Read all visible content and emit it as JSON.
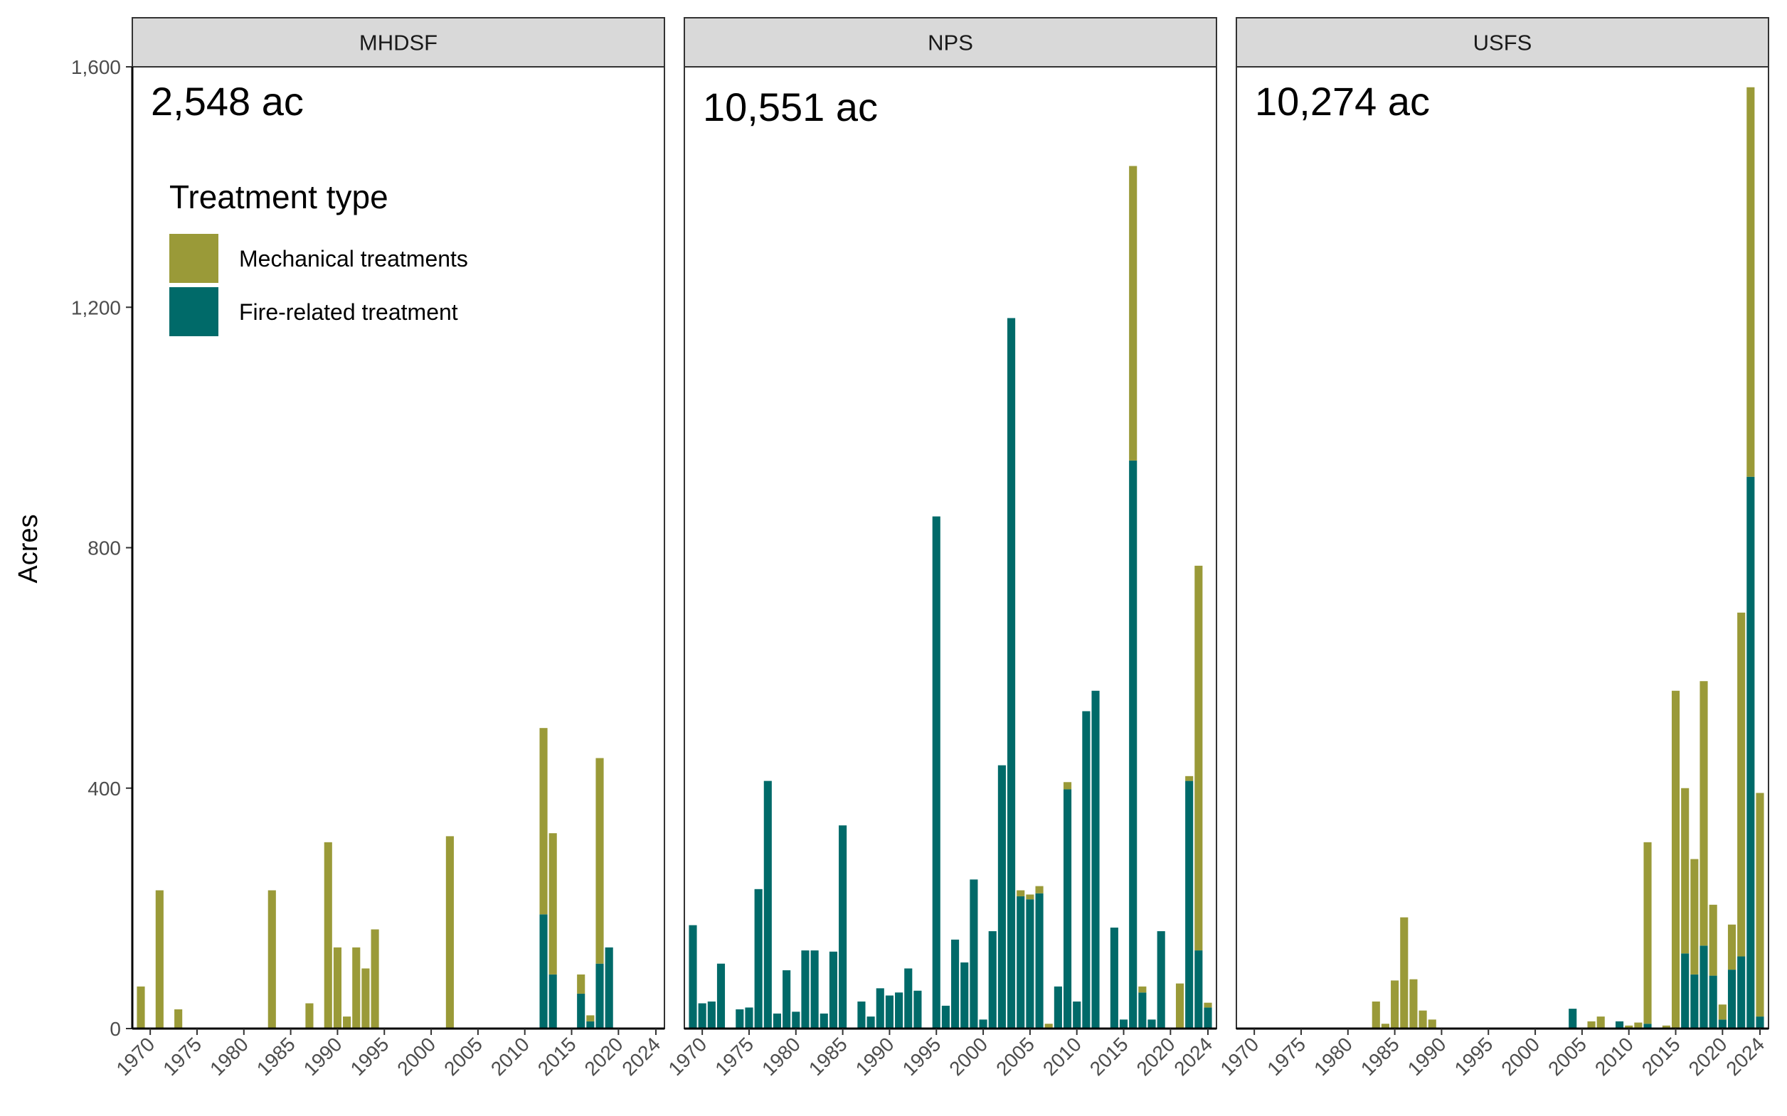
{
  "chart_data": {
    "type": "bar",
    "stacked": true,
    "ylabel": "Acres",
    "ylim": [
      0,
      1600
    ],
    "yticks": [
      0,
      400,
      800,
      1200,
      1600
    ],
    "ytick_labels": [
      "0",
      "400",
      "800",
      "1,200",
      "1,600"
    ],
    "xlim": [
      1969,
      2024
    ],
    "xticks": [
      1970,
      1975,
      1980,
      1985,
      1990,
      1995,
      2000,
      2005,
      2010,
      2015,
      2020,
      2024
    ],
    "xtick_labels": [
      "1970",
      "1975",
      "1980",
      "1985",
      "1990",
      "1995",
      "2000",
      "2005",
      "2010",
      "2015",
      "2020",
      "2024"
    ],
    "colors": {
      "Fire-related treatment": "#006a69",
      "Mechanical treatments": "#9a9a38"
    },
    "legend": {
      "title": "Treatment type",
      "position": "top-left of first panel",
      "entries": [
        "Mechanical treatments",
        "Fire-related treatment"
      ]
    },
    "panels": [
      {
        "name": "MHDSF",
        "total_label": "2,548 ac",
        "bars": [
          {
            "year": 1969,
            "fire": 0,
            "mech": 70
          },
          {
            "year": 1971,
            "fire": 0,
            "mech": 230
          },
          {
            "year": 1973,
            "fire": 0,
            "mech": 32
          },
          {
            "year": 1983,
            "fire": 0,
            "mech": 230
          },
          {
            "year": 1987,
            "fire": 0,
            "mech": 42
          },
          {
            "year": 1989,
            "fire": 0,
            "mech": 310
          },
          {
            "year": 1990,
            "fire": 0,
            "mech": 135
          },
          {
            "year": 1991,
            "fire": 0,
            "mech": 20
          },
          {
            "year": 1992,
            "fire": 0,
            "mech": 135
          },
          {
            "year": 1993,
            "fire": 0,
            "mech": 100
          },
          {
            "year": 1994,
            "fire": 0,
            "mech": 165
          },
          {
            "year": 2002,
            "fire": 0,
            "mech": 320
          },
          {
            "year": 2012,
            "fire": 190,
            "mech": 310
          },
          {
            "year": 2013,
            "fire": 90,
            "mech": 235
          },
          {
            "year": 2016,
            "fire": 58,
            "mech": 32
          },
          {
            "year": 2017,
            "fire": 12,
            "mech": 10
          },
          {
            "year": 2018,
            "fire": 108,
            "mech": 342
          },
          {
            "year": 2019,
            "fire": 135,
            "mech": 0
          }
        ]
      },
      {
        "name": "NPS",
        "total_label": "10,551 ac",
        "bars": [
          {
            "year": 1969,
            "fire": 172,
            "mech": 0
          },
          {
            "year": 1970,
            "fire": 42,
            "mech": 0
          },
          {
            "year": 1971,
            "fire": 45,
            "mech": 0
          },
          {
            "year": 1972,
            "fire": 108,
            "mech": 0
          },
          {
            "year": 1974,
            "fire": 32,
            "mech": 0
          },
          {
            "year": 1975,
            "fire": 35,
            "mech": 0
          },
          {
            "year": 1976,
            "fire": 232,
            "mech": 0
          },
          {
            "year": 1977,
            "fire": 412,
            "mech": 0
          },
          {
            "year": 1978,
            "fire": 25,
            "mech": 0
          },
          {
            "year": 1979,
            "fire": 97,
            "mech": 0
          },
          {
            "year": 1980,
            "fire": 28,
            "mech": 0
          },
          {
            "year": 1981,
            "fire": 130,
            "mech": 0
          },
          {
            "year": 1982,
            "fire": 130,
            "mech": 0
          },
          {
            "year": 1983,
            "fire": 25,
            "mech": 0
          },
          {
            "year": 1984,
            "fire": 128,
            "mech": 0
          },
          {
            "year": 1985,
            "fire": 338,
            "mech": 0
          },
          {
            "year": 1987,
            "fire": 45,
            "mech": 0
          },
          {
            "year": 1988,
            "fire": 20,
            "mech": 0
          },
          {
            "year": 1989,
            "fire": 67,
            "mech": 0
          },
          {
            "year": 1990,
            "fire": 55,
            "mech": 0
          },
          {
            "year": 1991,
            "fire": 60,
            "mech": 0
          },
          {
            "year": 1992,
            "fire": 100,
            "mech": 0
          },
          {
            "year": 1993,
            "fire": 63,
            "mech": 0
          },
          {
            "year": 1995,
            "fire": 852,
            "mech": 0
          },
          {
            "year": 1996,
            "fire": 38,
            "mech": 0
          },
          {
            "year": 1997,
            "fire": 148,
            "mech": 0
          },
          {
            "year": 1998,
            "fire": 110,
            "mech": 0
          },
          {
            "year": 1999,
            "fire": 248,
            "mech": 0
          },
          {
            "year": 2000,
            "fire": 15,
            "mech": 0
          },
          {
            "year": 2001,
            "fire": 162,
            "mech": 0
          },
          {
            "year": 2002,
            "fire": 438,
            "mech": 0
          },
          {
            "year": 2003,
            "fire": 1182,
            "mech": 0
          },
          {
            "year": 2004,
            "fire": 220,
            "mech": 10
          },
          {
            "year": 2005,
            "fire": 215,
            "mech": 8
          },
          {
            "year": 2006,
            "fire": 225,
            "mech": 12
          },
          {
            "year": 2007,
            "fire": 0,
            "mech": 8
          },
          {
            "year": 2008,
            "fire": 70,
            "mech": 0
          },
          {
            "year": 2009,
            "fire": 398,
            "mech": 12
          },
          {
            "year": 2010,
            "fire": 45,
            "mech": 0
          },
          {
            "year": 2011,
            "fire": 528,
            "mech": 0
          },
          {
            "year": 2012,
            "fire": 562,
            "mech": 0
          },
          {
            "year": 2014,
            "fire": 168,
            "mech": 0
          },
          {
            "year": 2015,
            "fire": 15,
            "mech": 0
          },
          {
            "year": 2016,
            "fire": 945,
            "mech": 490
          },
          {
            "year": 2017,
            "fire": 60,
            "mech": 10
          },
          {
            "year": 2018,
            "fire": 15,
            "mech": 0
          },
          {
            "year": 2019,
            "fire": 162,
            "mech": 0
          },
          {
            "year": 2021,
            "fire": 0,
            "mech": 75
          },
          {
            "year": 2022,
            "fire": 412,
            "mech": 8
          },
          {
            "year": 2023,
            "fire": 130,
            "mech": 640
          },
          {
            "year": 2024,
            "fire": 35,
            "mech": 8
          }
        ]
      },
      {
        "name": "USFS",
        "total_label": "10,274 ac",
        "bars": [
          {
            "year": 1983,
            "fire": 0,
            "mech": 45
          },
          {
            "year": 1984,
            "fire": 0,
            "mech": 8
          },
          {
            "year": 1985,
            "fire": 0,
            "mech": 80
          },
          {
            "year": 1986,
            "fire": 0,
            "mech": 185
          },
          {
            "year": 1987,
            "fire": 0,
            "mech": 82
          },
          {
            "year": 1988,
            "fire": 0,
            "mech": 30
          },
          {
            "year": 1989,
            "fire": 0,
            "mech": 15
          },
          {
            "year": 2004,
            "fire": 33,
            "mech": 0
          },
          {
            "year": 2006,
            "fire": 0,
            "mech": 12
          },
          {
            "year": 2007,
            "fire": 0,
            "mech": 20
          },
          {
            "year": 2009,
            "fire": 12,
            "mech": 0
          },
          {
            "year": 2010,
            "fire": 0,
            "mech": 5
          },
          {
            "year": 2011,
            "fire": 0,
            "mech": 10
          },
          {
            "year": 2012,
            "fire": 8,
            "mech": 302
          },
          {
            "year": 2014,
            "fire": 0,
            "mech": 5
          },
          {
            "year": 2015,
            "fire": 0,
            "mech": 562
          },
          {
            "year": 2016,
            "fire": 125,
            "mech": 275
          },
          {
            "year": 2017,
            "fire": 90,
            "mech": 192
          },
          {
            "year": 2018,
            "fire": 138,
            "mech": 440
          },
          {
            "year": 2019,
            "fire": 88,
            "mech": 118
          },
          {
            "year": 2020,
            "fire": 15,
            "mech": 25
          },
          {
            "year": 2021,
            "fire": 98,
            "mech": 75
          },
          {
            "year": 2022,
            "fire": 120,
            "mech": 572
          },
          {
            "year": 2023,
            "fire": 918,
            "mech": 648
          },
          {
            "year": 2024,
            "fire": 20,
            "mech": 372
          }
        ]
      }
    ]
  }
}
